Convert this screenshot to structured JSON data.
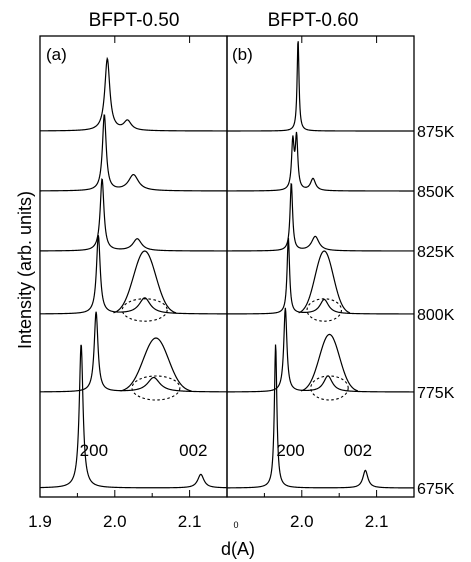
{
  "chart_data": {
    "type": "line",
    "ylabel": "Intensity (arb. units)",
    "xlabel": "d(A)",
    "xlabel_superscript": "0",
    "temperatures": [
      "875K",
      "850K",
      "825K",
      "800K",
      "775K",
      "675K"
    ],
    "panels": [
      {
        "title": "BFPT-0.50",
        "label": "(a)",
        "xlim": [
          1.9,
          2.15
        ],
        "xticks": [
          1.9,
          2.0,
          2.1
        ],
        "xtick_labels": [
          "1.9",
          "2.0",
          "2.1"
        ],
        "peak_labels": [
          {
            "text": "200",
            "x": 1.972,
            "temp": "675K"
          },
          {
            "text": "002",
            "x": 2.105,
            "temp": "675K"
          }
        ],
        "series": [
          {
            "temp": "875K",
            "peaks": [
              {
                "x": 1.99,
                "h": 0.9,
                "w": 0.004
              },
              {
                "x": 2.017,
                "h": 0.12,
                "w": 0.006
              }
            ]
          },
          {
            "temp": "850K",
            "peaks": [
              {
                "x": 1.986,
                "h": 0.95,
                "w": 0.003
              },
              {
                "x": 2.025,
                "h": 0.2,
                "w": 0.008
              }
            ]
          },
          {
            "temp": "825K",
            "peaks": [
              {
                "x": 1.983,
                "h": 0.9,
                "w": 0.003
              },
              {
                "x": 2.03,
                "h": 0.15,
                "w": 0.007
              }
            ]
          },
          {
            "temp": "800K",
            "peaks": [
              {
                "x": 1.978,
                "h": 0.98,
                "w": 0.003
              },
              {
                "x": 2.04,
                "h": 0.2,
                "w": 0.009
              }
            ]
          },
          {
            "temp": "775K",
            "peaks": [
              {
                "x": 1.975,
                "h": 1.0,
                "w": 0.003
              },
              {
                "x": 2.052,
                "h": 0.18,
                "w": 0.01
              }
            ]
          },
          {
            "temp": "675K",
            "peaks": [
              {
                "x": 1.955,
                "h": 1.8,
                "w": 0.003
              },
              {
                "x": 2.115,
                "h": 0.17,
                "w": 0.005
              }
            ]
          }
        ],
        "insets": [
          {
            "temp": "800K",
            "center": 2.04,
            "halfwidth": 0.022,
            "height": 3.5,
            "ellipse_rx": 0.03,
            "ellipse_ry": 0.14
          },
          {
            "temp": "775K",
            "center": 2.055,
            "halfwidth": 0.025,
            "height": 3.0,
            "ellipse_rx": 0.032,
            "ellipse_ry": 0.15
          }
        ]
      },
      {
        "title": "BFPT-0.60",
        "label": "(b)",
        "xlim": [
          1.9,
          2.15
        ],
        "xticks": [
          2.0,
          2.1
        ],
        "xtick_labels": [
          "2.0",
          "2.1"
        ],
        "peak_labels": [
          {
            "text": "200",
            "x": 1.985,
            "temp": "675K"
          },
          {
            "text": "002",
            "x": 2.075,
            "temp": "675K"
          }
        ],
        "series": [
          {
            "temp": "875K",
            "peaks": [
              {
                "x": 1.995,
                "h": 1.15,
                "w": 0.0015
              }
            ]
          },
          {
            "temp": "850K",
            "peaks": [
              {
                "x": 1.988,
                "h": 0.6,
                "w": 0.002
              },
              {
                "x": 1.993,
                "h": 0.65,
                "w": 0.002
              },
              {
                "x": 2.015,
                "h": 0.15,
                "w": 0.004
              }
            ]
          },
          {
            "temp": "825K",
            "peaks": [
              {
                "x": 1.986,
                "h": 0.85,
                "w": 0.002
              },
              {
                "x": 2.018,
                "h": 0.18,
                "w": 0.006
              }
            ]
          },
          {
            "temp": "800K",
            "peaks": [
              {
                "x": 1.982,
                "h": 0.95,
                "w": 0.002
              },
              {
                "x": 2.03,
                "h": 0.18,
                "w": 0.007
              }
            ]
          },
          {
            "temp": "775K",
            "peaks": [
              {
                "x": 1.978,
                "h": 1.05,
                "w": 0.0025
              },
              {
                "x": 2.035,
                "h": 0.2,
                "w": 0.007
              }
            ]
          },
          {
            "temp": "675K",
            "peaks": [
              {
                "x": 1.965,
                "h": 1.8,
                "w": 0.002
              },
              {
                "x": 2.085,
                "h": 0.22,
                "w": 0.004
              }
            ]
          }
        ],
        "insets": [
          {
            "temp": "800K",
            "center": 2.03,
            "halfwidth": 0.018,
            "height": 3.5,
            "ellipse_rx": 0.023,
            "ellipse_ry": 0.14
          },
          {
            "temp": "775K",
            "center": 2.037,
            "halfwidth": 0.02,
            "height": 3.2,
            "ellipse_rx": 0.025,
            "ellipse_ry": 0.15
          }
        ]
      }
    ]
  }
}
